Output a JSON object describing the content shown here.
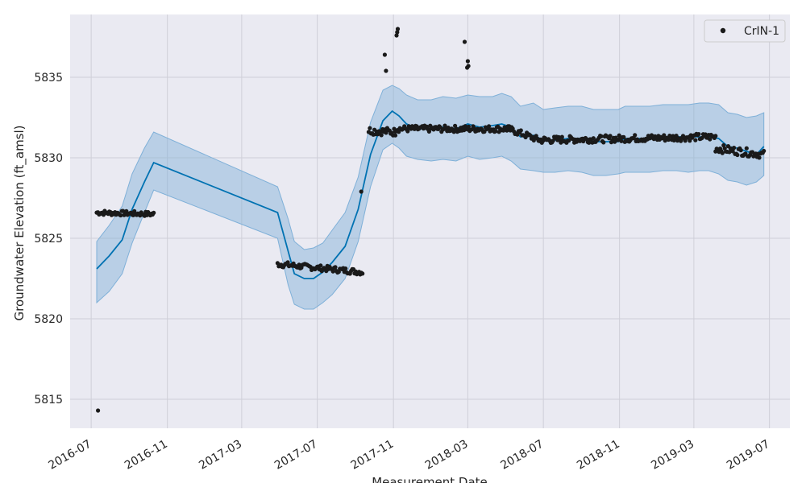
{
  "chart_data": {
    "type": "scatter",
    "title": "",
    "xlabel": "Measurement Date",
    "ylabel": "Groundwater Elevation (ft_amsl)",
    "x_type": "date",
    "xlim": [
      "2016-05-28",
      "2019-08-03"
    ],
    "ylim": [
      5813.2,
      5838.9
    ],
    "x_ticks": [
      "2016-07-01",
      "2016-11-01",
      "2017-03-01",
      "2017-07-01",
      "2017-11-01",
      "2018-03-01",
      "2018-07-01",
      "2018-11-01",
      "2019-03-01",
      "2019-07-01"
    ],
    "x_tick_labels": [
      "2016-07",
      "2016-11",
      "2017-03",
      "2017-07",
      "2017-11",
      "2018-03",
      "2018-07",
      "2018-11",
      "2019-03",
      "2019-07"
    ],
    "y_ticks": [
      5815,
      5820,
      5825,
      5830,
      5835
    ],
    "y_tick_labels": [
      "5815",
      "5820",
      "5825",
      "5830",
      "5835"
    ],
    "grid": true,
    "legend": {
      "position": "upper-right",
      "entries": [
        "CrIN-1"
      ]
    },
    "colors": {
      "background": "#eaeaf2",
      "grid": "#cfcfd8",
      "points": "#1a1a1a",
      "forecast": "#0072b2",
      "band": "#7fb0d8"
    },
    "series": [
      {
        "name": "CrIN-1",
        "kind": "observed",
        "clusters": [
          {
            "start": "2016-07-10",
            "end": "2016-10-10",
            "y_start": 5826.6,
            "y_end": 5826.5,
            "noise": 0.15
          },
          {
            "start": "2017-04-28",
            "end": "2017-09-12",
            "y_start": 5823.4,
            "y_end": 5822.9,
            "noise": 0.18
          },
          {
            "start": "2017-09-22",
            "end": "2017-11-04",
            "y_start": 5831.7,
            "y_end": 5831.6,
            "noise": 0.25
          },
          {
            "start": "2017-11-04",
            "end": "2018-05-05",
            "y_start": 5831.8,
            "y_end": 5831.8,
            "noise": 0.2
          },
          {
            "start": "2018-05-05",
            "end": "2018-06-25",
            "y_start": 5831.8,
            "y_end": 5831.1,
            "noise": 0.2
          },
          {
            "start": "2018-06-25",
            "end": "2019-04-05",
            "y_start": 5831.1,
            "y_end": 5831.3,
            "noise": 0.22
          },
          {
            "start": "2019-04-05",
            "end": "2019-06-22",
            "y_start": 5830.6,
            "y_end": 5830.2,
            "noise": 0.25
          }
        ],
        "outliers": [
          {
            "x": "2016-07-12",
            "y": 5814.3
          },
          {
            "x": "2017-09-10",
            "y": 5827.9
          },
          {
            "x": "2017-10-18",
            "y": 5836.4
          },
          {
            "x": "2017-10-20",
            "y": 5835.4
          },
          {
            "x": "2017-11-06",
            "y": 5837.6
          },
          {
            "x": "2017-11-07",
            "y": 5837.8
          },
          {
            "x": "2017-11-08",
            "y": 5838.0
          },
          {
            "x": "2018-02-24",
            "y": 5837.2
          },
          {
            "x": "2018-02-28",
            "y": 5835.6
          },
          {
            "x": "2018-03-01",
            "y": 5836.0
          },
          {
            "x": "2018-03-02",
            "y": 5835.7
          }
        ]
      },
      {
        "name": "",
        "kind": "forecast",
        "x": [
          "2016-07-10",
          "2016-07-30",
          "2016-08-20",
          "2016-09-05",
          "2016-09-25",
          "2016-10-10",
          "2017-04-28",
          "2017-05-15",
          "2017-05-25",
          "2017-06-10",
          "2017-06-25",
          "2017-07-10",
          "2017-07-25",
          "2017-08-15",
          "2017-09-05",
          "2017-09-25",
          "2017-10-15",
          "2017-10-30",
          "2017-11-10",
          "2017-11-22",
          "2017-12-10",
          "2018-01-01",
          "2018-01-20",
          "2018-02-10",
          "2018-03-01",
          "2018-03-20",
          "2018-04-10",
          "2018-04-25",
          "2018-05-10",
          "2018-05-25",
          "2018-06-15",
          "2018-07-01",
          "2018-07-20",
          "2018-08-10",
          "2018-09-01",
          "2018-09-20",
          "2018-10-10",
          "2018-10-30",
          "2018-11-10",
          "2018-12-01",
          "2018-12-20",
          "2019-01-10",
          "2019-02-01",
          "2019-02-20",
          "2019-03-10",
          "2019-03-25",
          "2019-04-10",
          "2019-04-25",
          "2019-05-10",
          "2019-05-25",
          "2019-06-10",
          "2019-06-22"
        ],
        "values": [
          5823.1,
          5823.9,
          5824.9,
          5826.8,
          5828.5,
          5829.7,
          5826.6,
          5824.2,
          5822.8,
          5822.5,
          5822.5,
          5822.9,
          5823.5,
          5824.5,
          5826.8,
          5830.2,
          5832.3,
          5832.9,
          5832.6,
          5832.1,
          5831.8,
          5831.8,
          5831.9,
          5831.8,
          5832.1,
          5831.9,
          5832.0,
          5832.1,
          5831.9,
          5831.3,
          5831.4,
          5831.1,
          5831.1,
          5831.2,
          5831.2,
          5831.0,
          5831.0,
          5831.0,
          5831.2,
          5831.2,
          5831.2,
          5831.3,
          5831.3,
          5831.3,
          5831.3,
          5831.3,
          5831.2,
          5830.7,
          5830.6,
          5830.4,
          5830.2,
          5830.7
        ],
        "lower": [
          5821.0,
          5821.7,
          5822.8,
          5824.7,
          5826.6,
          5828.0,
          5825.0,
          5822.1,
          5820.9,
          5820.6,
          5820.6,
          5821.0,
          5821.5,
          5822.5,
          5824.8,
          5828.2,
          5830.5,
          5830.9,
          5830.6,
          5830.1,
          5829.9,
          5829.8,
          5829.9,
          5829.8,
          5830.1,
          5829.9,
          5830.0,
          5830.1,
          5829.8,
          5829.3,
          5829.2,
          5829.1,
          5829.1,
          5829.2,
          5829.1,
          5828.9,
          5828.9,
          5829.0,
          5829.1,
          5829.1,
          5829.1,
          5829.2,
          5829.2,
          5829.1,
          5829.2,
          5829.2,
          5829.0,
          5828.6,
          5828.5,
          5828.3,
          5828.5,
          5828.9
        ],
        "upper": [
          5824.8,
          5825.8,
          5827.0,
          5829.0,
          5830.6,
          5831.6,
          5828.2,
          5826.2,
          5824.8,
          5824.3,
          5824.4,
          5824.7,
          5825.5,
          5826.6,
          5828.8,
          5832.2,
          5834.2,
          5834.5,
          5834.3,
          5833.9,
          5833.6,
          5833.6,
          5833.8,
          5833.7,
          5833.9,
          5833.8,
          5833.8,
          5834.0,
          5833.8,
          5833.2,
          5833.4,
          5833.0,
          5833.1,
          5833.2,
          5833.2,
          5833.0,
          5833.0,
          5833.0,
          5833.2,
          5833.2,
          5833.2,
          5833.3,
          5833.3,
          5833.3,
          5833.4,
          5833.4,
          5833.3,
          5832.8,
          5832.7,
          5832.5,
          5832.6,
          5832.8
        ]
      }
    ]
  }
}
